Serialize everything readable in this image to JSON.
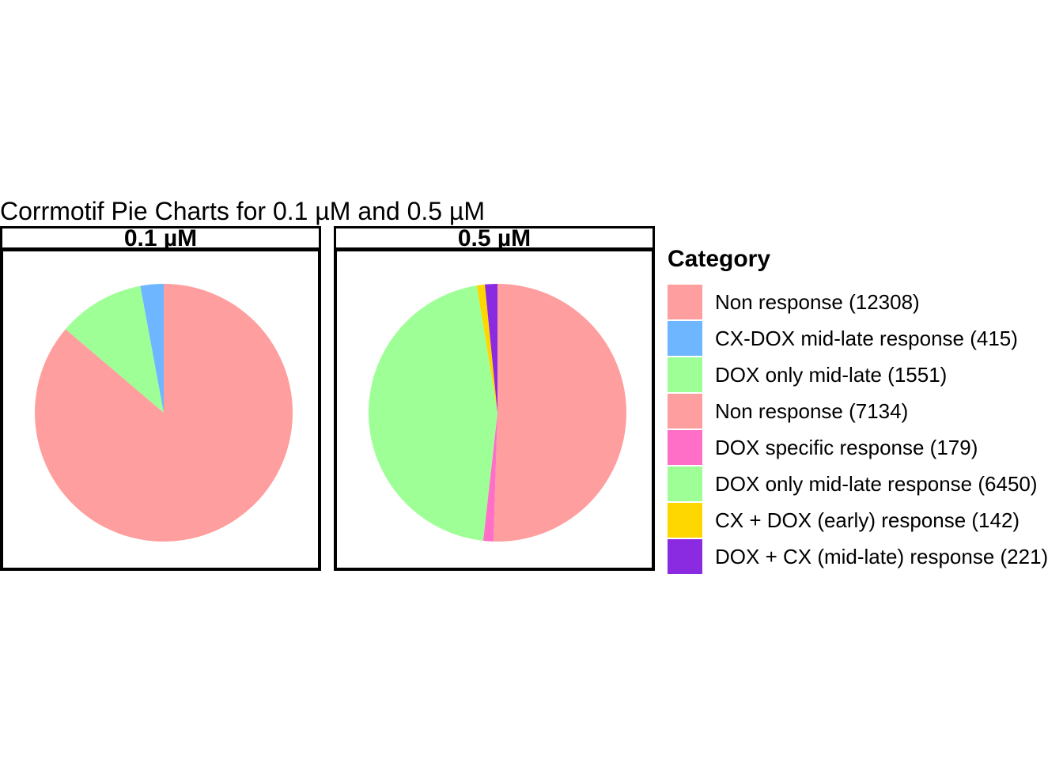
{
  "chart_data": {
    "type": "pie",
    "title": "Corrmotif Pie Charts for 0.1 µM and 0.5 µM",
    "legend": {
      "title": "Category",
      "placement": "right",
      "entries": [
        {
          "label": "Non response (12308)",
          "color": "#FF9E9E"
        },
        {
          "label": "CX-DOX mid-late response (415)",
          "color": "#6EB6FF"
        },
        {
          "label": "DOX only mid-late (1551)",
          "color": "#9EFF97"
        },
        {
          "label": "Non response (7134)",
          "color": "#FF9E9E"
        },
        {
          "label": "DOX specific response (179)",
          "color": "#FF6EC7"
        },
        {
          "label": "DOX only mid-late response (6450)",
          "color": "#9EFF97"
        },
        {
          "label": "CX + DOX (early) response (142)",
          "color": "#FFD700"
        },
        {
          "label": "DOX + CX (mid-late) response (221)",
          "color": "#8A2BE2"
        }
      ]
    },
    "panels": [
      {
        "strip": "0.1 µM",
        "slices": [
          {
            "category": "Non response (12308)",
            "value": 12308,
            "color": "#FF9E9E"
          },
          {
            "category": "DOX only mid-late (1551)",
            "value": 1551,
            "color": "#9EFF97"
          },
          {
            "category": "CX-DOX mid-late response (415)",
            "value": 415,
            "color": "#6EB6FF"
          }
        ]
      },
      {
        "strip": "0.5 µM",
        "slices": [
          {
            "category": "Non response (7134)",
            "value": 7134,
            "color": "#FF9E9E"
          },
          {
            "category": "DOX specific response (179)",
            "value": 179,
            "color": "#FF6EC7"
          },
          {
            "category": "DOX only mid-late response (6450)",
            "value": 6450,
            "color": "#9EFF97"
          },
          {
            "category": "CX + DOX (early) response (142)",
            "value": 142,
            "color": "#FFD700"
          },
          {
            "category": "DOX + CX (mid-late) response (221)",
            "value": 221,
            "color": "#8A2BE2"
          }
        ]
      }
    ]
  }
}
